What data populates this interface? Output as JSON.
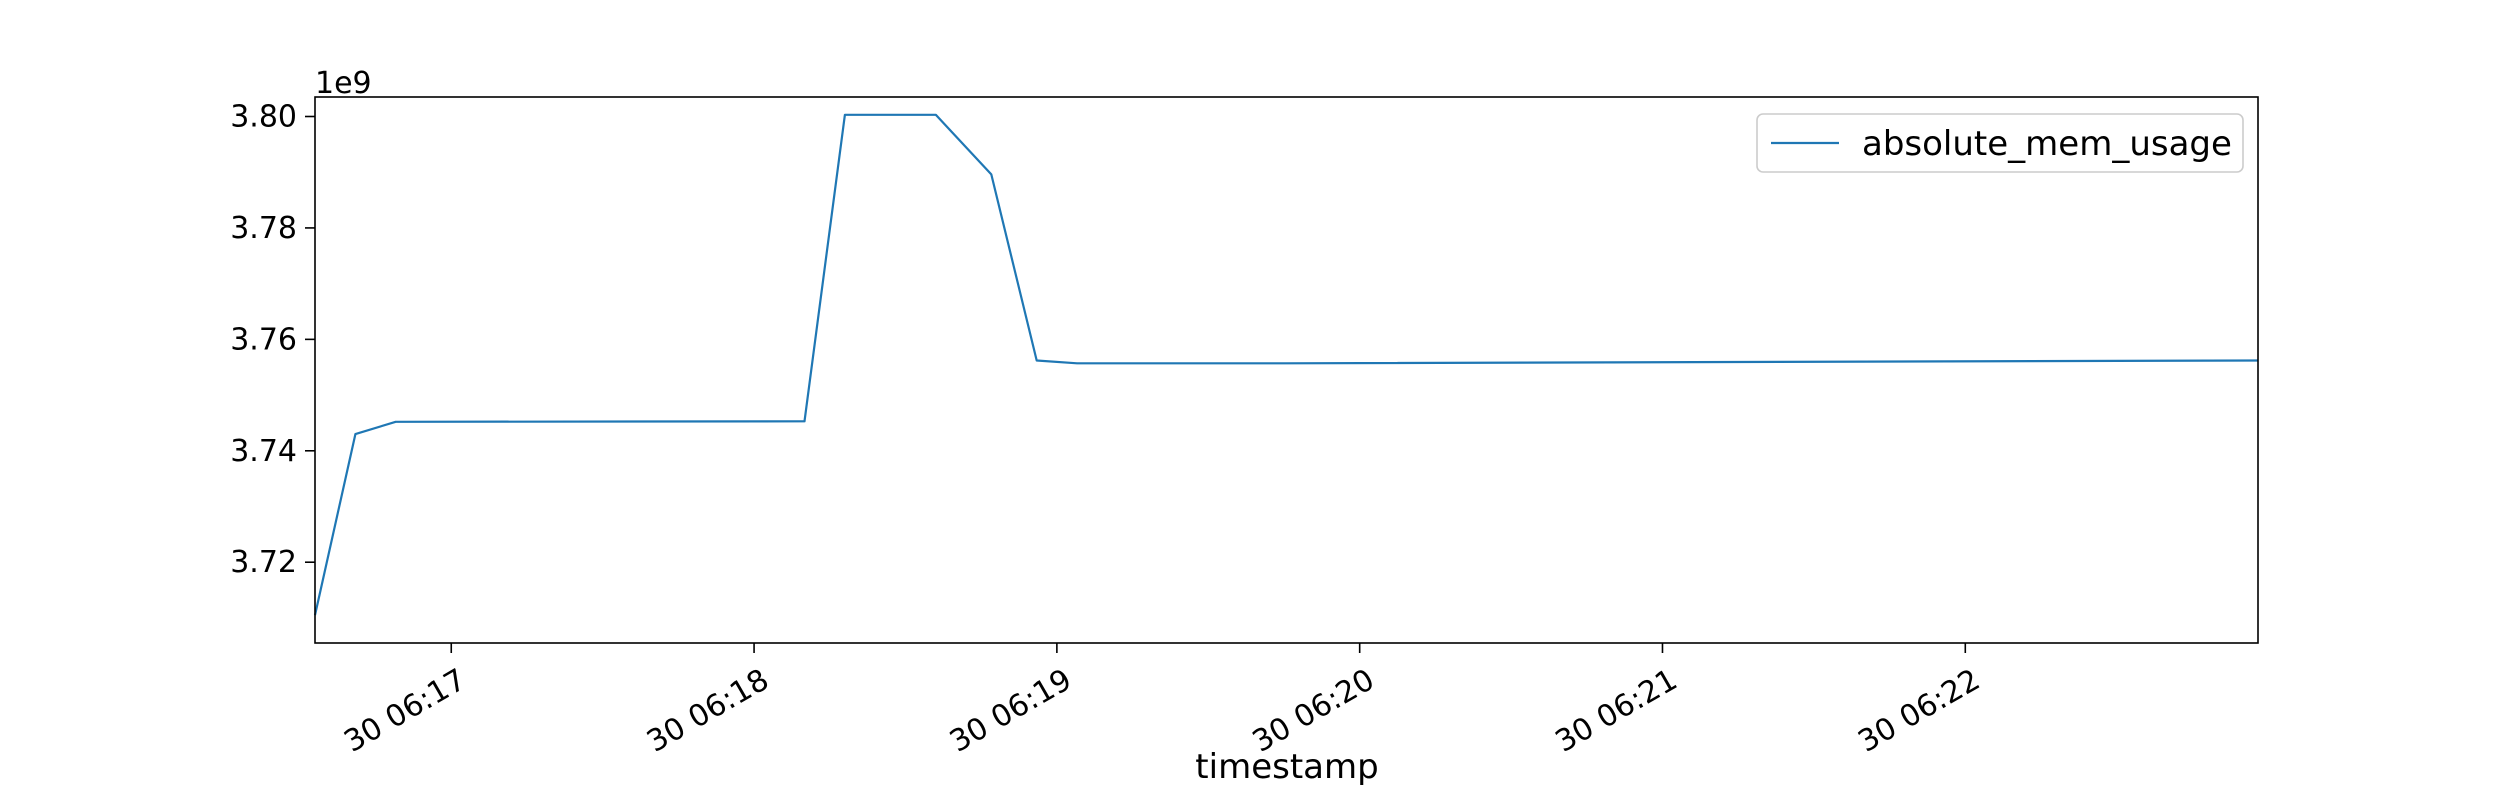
{
  "chart_data": {
    "type": "line",
    "xlabel": "timestamp",
    "ylabel": "",
    "y_offset_text": "1e9",
    "x_format": "datetime",
    "xlim": [
      "06:16:33",
      "06:22:58"
    ],
    "ylim": [
      3.7055,
      3.8035
    ],
    "y_ticks": [
      {
        "value": 3.72,
        "label": "3.72"
      },
      {
        "value": 3.74,
        "label": "3.74"
      },
      {
        "value": 3.76,
        "label": "3.76"
      },
      {
        "value": 3.78,
        "label": "3.78"
      },
      {
        "value": 3.8,
        "label": "3.80"
      }
    ],
    "x_ticks": [
      {
        "value": "06:17:00",
        "label": "30 06:17"
      },
      {
        "value": "06:18:00",
        "label": "30 06:18"
      },
      {
        "value": "06:19:00",
        "label": "30 06:19"
      },
      {
        "value": "06:20:00",
        "label": "30 06:20"
      },
      {
        "value": "06:21:00",
        "label": "30 06:21"
      },
      {
        "value": "06:22:00",
        "label": "30 06:22"
      }
    ],
    "grid": false,
    "legend_position": "top-right",
    "series": [
      {
        "name": "absolute_mem_usage",
        "color": "#1f77b4",
        "points": [
          {
            "x": "06:16:33",
            "y": 3.7105
          },
          {
            "x": "06:16:41",
            "y": 3.743
          },
          {
            "x": "06:16:49",
            "y": 3.7452
          },
          {
            "x": "06:18:10",
            "y": 3.7453
          },
          {
            "x": "06:18:18",
            "y": 3.8003
          },
          {
            "x": "06:18:36",
            "y": 3.8003
          },
          {
            "x": "06:18:47",
            "y": 3.7896
          },
          {
            "x": "06:18:56",
            "y": 3.7562
          },
          {
            "x": "06:19:04",
            "y": 3.7557
          },
          {
            "x": "06:19:45",
            "y": 3.7557
          },
          {
            "x": "06:22:58",
            "y": 3.7562
          }
        ]
      }
    ]
  }
}
